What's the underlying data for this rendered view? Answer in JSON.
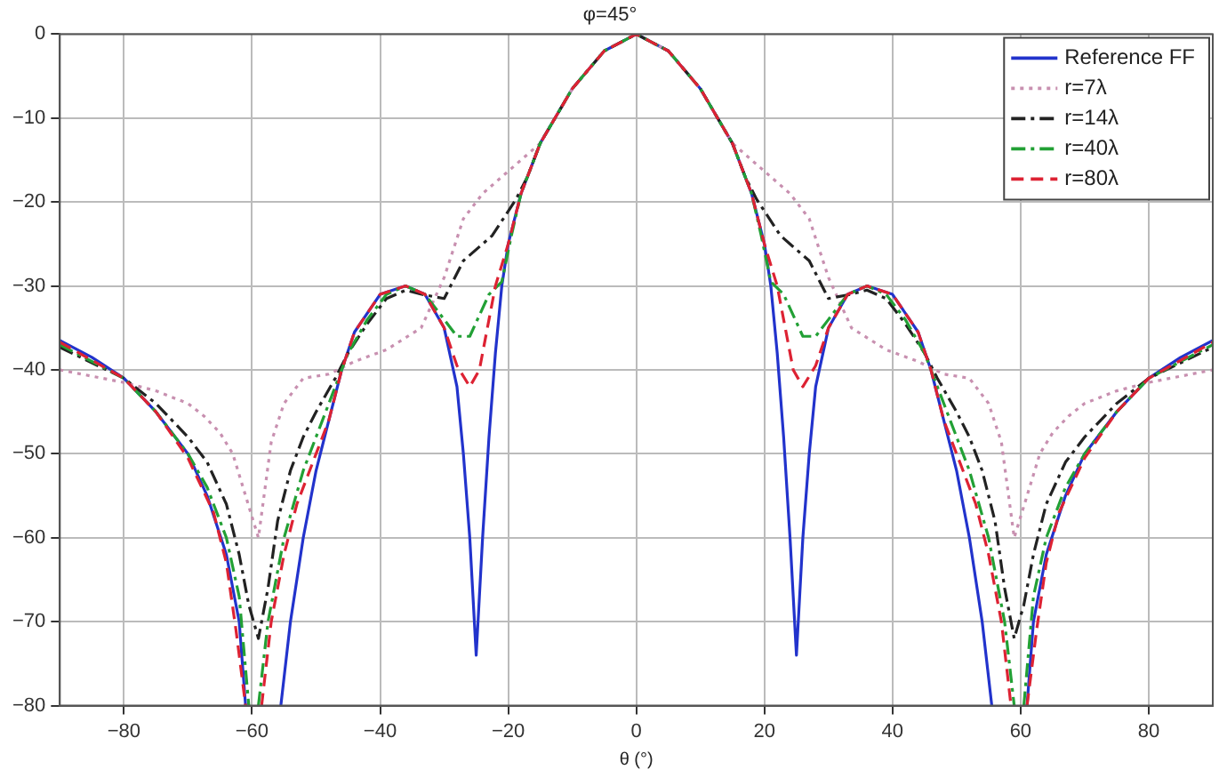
{
  "chart_data": {
    "type": "line",
    "title": "φ=45°",
    "xlabel": "θ (°)",
    "xlim": [
      -90,
      90
    ],
    "xticks": [
      -80,
      -60,
      -40,
      -20,
      0,
      20,
      40,
      60,
      80
    ],
    "ylim": [
      -80,
      0
    ],
    "yticks": [
      -80,
      -70,
      -60,
      -50,
      -40,
      -30,
      -20,
      -10,
      0
    ],
    "grid": true,
    "legend": "top right",
    "marker": "none",
    "series": [
      {
        "name": "Reference FF",
        "color": "#2233cc",
        "line_style": "solid",
        "x": [
          -90,
          -85,
          -80,
          -75,
          -70,
          -67,
          -64,
          -62,
          -61,
          -58,
          -55.5,
          -54,
          -52,
          -50,
          -48,
          -46,
          -44,
          -40,
          -36,
          -33,
          -30,
          -28,
          -27,
          -26,
          -25.5,
          -25,
          -24.5,
          -24,
          -23,
          -22,
          -21,
          -20,
          -18,
          -15,
          -10,
          -5,
          0,
          5,
          10,
          15,
          18,
          20,
          21,
          22,
          23,
          24,
          24.5,
          25,
          25.5,
          26,
          27,
          28,
          30,
          33,
          36,
          40,
          44,
          46,
          48,
          50,
          52,
          54,
          55.5,
          58,
          61,
          62,
          64,
          67,
          70,
          75,
          80,
          85,
          90
        ],
        "values": [
          -36.5,
          -38.5,
          -41,
          -45,
          -50,
          -55,
          -62,
          -70,
          -80,
          null,
          -80,
          -70,
          -60,
          -52,
          -46,
          -40,
          -35.5,
          -31,
          -30,
          -31,
          -35,
          -42,
          -50,
          -60,
          -67,
          -74,
          -67,
          -60,
          -48,
          -38,
          -30,
          -25,
          -19,
          -13,
          -6.5,
          -2,
          0,
          -2,
          -6.5,
          -13,
          -19,
          -25,
          -30,
          -38,
          -48,
          -60,
          -67,
          -74,
          -67,
          -60,
          -50,
          -42,
          -35,
          -31,
          -30,
          -31,
          -35.5,
          -40,
          -46,
          -52,
          -60,
          -70,
          -80,
          null,
          -80,
          -70,
          -62,
          -55,
          -50,
          -45,
          -41,
          -38.5,
          -36.5
        ]
      },
      {
        "name": "r=7λ",
        "color": "#c890b0",
        "line_style": "dotted",
        "x": [
          -90,
          -80,
          -75,
          -70,
          -67.5,
          -65,
          -63,
          -61,
          -59,
          -57,
          -55,
          -52,
          -48,
          -44,
          -39,
          -33.6,
          -30,
          -27,
          -24,
          -18,
          -15,
          -10,
          -5,
          0,
          5,
          10,
          15,
          18,
          24,
          27,
          30,
          33.6,
          39,
          44,
          48,
          52,
          55,
          57,
          59,
          61,
          63,
          65,
          67.5,
          70,
          75,
          80,
          90
        ],
        "values": [
          -40,
          -41.5,
          -42.5,
          -44,
          -45.5,
          -47.5,
          -50,
          -55,
          -60,
          -48.6,
          -44,
          -41,
          -40.5,
          -39,
          -37.6,
          -35,
          -29,
          -22,
          -19,
          -15,
          -13,
          -6.5,
          -2,
          0,
          -2,
          -6.5,
          -13,
          -15,
          -19,
          -22,
          -29,
          -35,
          -37.6,
          -39,
          -40.5,
          -41,
          -44,
          -48.6,
          -60,
          -55,
          -50,
          -47.5,
          -45.5,
          -44,
          -42.5,
          -41.5,
          -40
        ]
      },
      {
        "name": "r=14λ",
        "color": "#222222",
        "line_style": "dashdot",
        "x": [
          -90,
          -80,
          -75,
          -70,
          -67,
          -64,
          -62,
          -60.5,
          -59,
          -57.5,
          -56,
          -54,
          -52,
          -50,
          -47,
          -45,
          -42,
          -39,
          -36,
          -33.5,
          -30,
          -27,
          -22.5,
          -18.8,
          -17,
          -15,
          -10,
          -5,
          0,
          5,
          10,
          15,
          17,
          18.8,
          22.5,
          27,
          30,
          33.5,
          36,
          39,
          42,
          45,
          47,
          50,
          52,
          54,
          56,
          57.5,
          59,
          60.5,
          62,
          64,
          67,
          70,
          75,
          80,
          90
        ],
        "values": [
          -37.3,
          -41,
          -44,
          -48,
          -51,
          -56,
          -62,
          -68,
          -72,
          -66,
          -58,
          -52,
          -48,
          -45,
          -41,
          -38,
          -34.5,
          -31.5,
          -30.5,
          -31,
          -31.5,
          -27,
          -24,
          -19.7,
          -17,
          -13,
          -6.5,
          -2,
          0,
          -2,
          -6.5,
          -13,
          -17,
          -19.7,
          -24,
          -27,
          -31.5,
          -31,
          -30.5,
          -31.5,
          -34.5,
          -38,
          -41,
          -45,
          -48,
          -52,
          -58,
          -66,
          -72,
          -68,
          -62,
          -56,
          -51,
          -48,
          -44,
          -41,
          -37.3
        ]
      },
      {
        "name": "r=40λ",
        "color": "#22a035",
        "line_style": "dashdot",
        "x": [
          -90,
          -80,
          -75,
          -70,
          -67,
          -64,
          -62,
          -60.5,
          -59.8,
          -59,
          -57.5,
          -55,
          -52,
          -50,
          -47,
          -45,
          -42,
          -39,
          -36,
          -33,
          -30,
          -28,
          -26,
          -24.5,
          -23,
          -21,
          -19.5,
          -18,
          -15,
          -10,
          -5,
          0,
          5,
          10,
          15,
          18,
          19.5,
          21,
          23,
          24.5,
          26,
          28,
          30,
          33,
          36,
          39,
          42,
          45,
          47,
          50,
          52,
          55,
          57.5,
          59,
          59.8,
          60.5,
          62,
          64,
          67,
          70,
          75,
          80,
          90
        ],
        "values": [
          -37,
          -41,
          -45,
          -50,
          -54,
          -60,
          -67,
          -80,
          null,
          -80,
          -70,
          -60,
          -52,
          -48,
          -42,
          -38,
          -34,
          -31,
          -30,
          -31,
          -34,
          -36,
          -36,
          -33.5,
          -31,
          -29.5,
          -24,
          -19,
          -13,
          -6.5,
          -2,
          0,
          -2,
          -6.5,
          -13,
          -19,
          -24,
          -29.5,
          -31,
          -33.5,
          -36,
          -36,
          -34,
          -31,
          -30,
          -31,
          -34,
          -38,
          -42,
          -48,
          -52,
          -60,
          -70,
          -80,
          null,
          -80,
          -67,
          -60,
          -54,
          -50,
          -45,
          -41,
          -37
        ]
      },
      {
        "name": "r=80λ",
        "color": "#dd2233",
        "line_style": "dashed",
        "x": [
          -90,
          -80,
          -75,
          -70,
          -66,
          -64,
          -62.5,
          -61,
          -60,
          -58.5,
          -57,
          -55,
          -53,
          -50,
          -48,
          -46,
          -44,
          -40,
          -36,
          -33,
          -30,
          -28,
          -26,
          -24.5,
          -23,
          -22,
          -20,
          -18,
          -15,
          -10,
          -5,
          0,
          5,
          10,
          15,
          18,
          20,
          22,
          23,
          24.5,
          26,
          28,
          30,
          33,
          36,
          40,
          44,
          46,
          48,
          50,
          53,
          55,
          57,
          58.5,
          60,
          61,
          62.5,
          64,
          66,
          70,
          75,
          80,
          90
        ],
        "values": [
          -36.7,
          -41,
          -45,
          -50.5,
          -57,
          -63,
          -71,
          -80,
          null,
          -80,
          -70,
          -62,
          -56,
          -50,
          -46,
          -40,
          -35.5,
          -31,
          -30,
          -31,
          -35,
          -39.5,
          -42,
          -40,
          -34,
          -30,
          -25,
          -19,
          -13,
          -6.5,
          -2,
          0,
          -2,
          -6.5,
          -13,
          -19,
          -25,
          -30,
          -34,
          -40,
          -42,
          -39.5,
          -35,
          -31,
          -30,
          -31,
          -35.5,
          -40,
          -46,
          -50,
          -56,
          -62,
          -70,
          -80,
          null,
          -80,
          -71,
          -63,
          -57,
          -50.5,
          -45,
          -41,
          -36.7
        ]
      }
    ]
  }
}
